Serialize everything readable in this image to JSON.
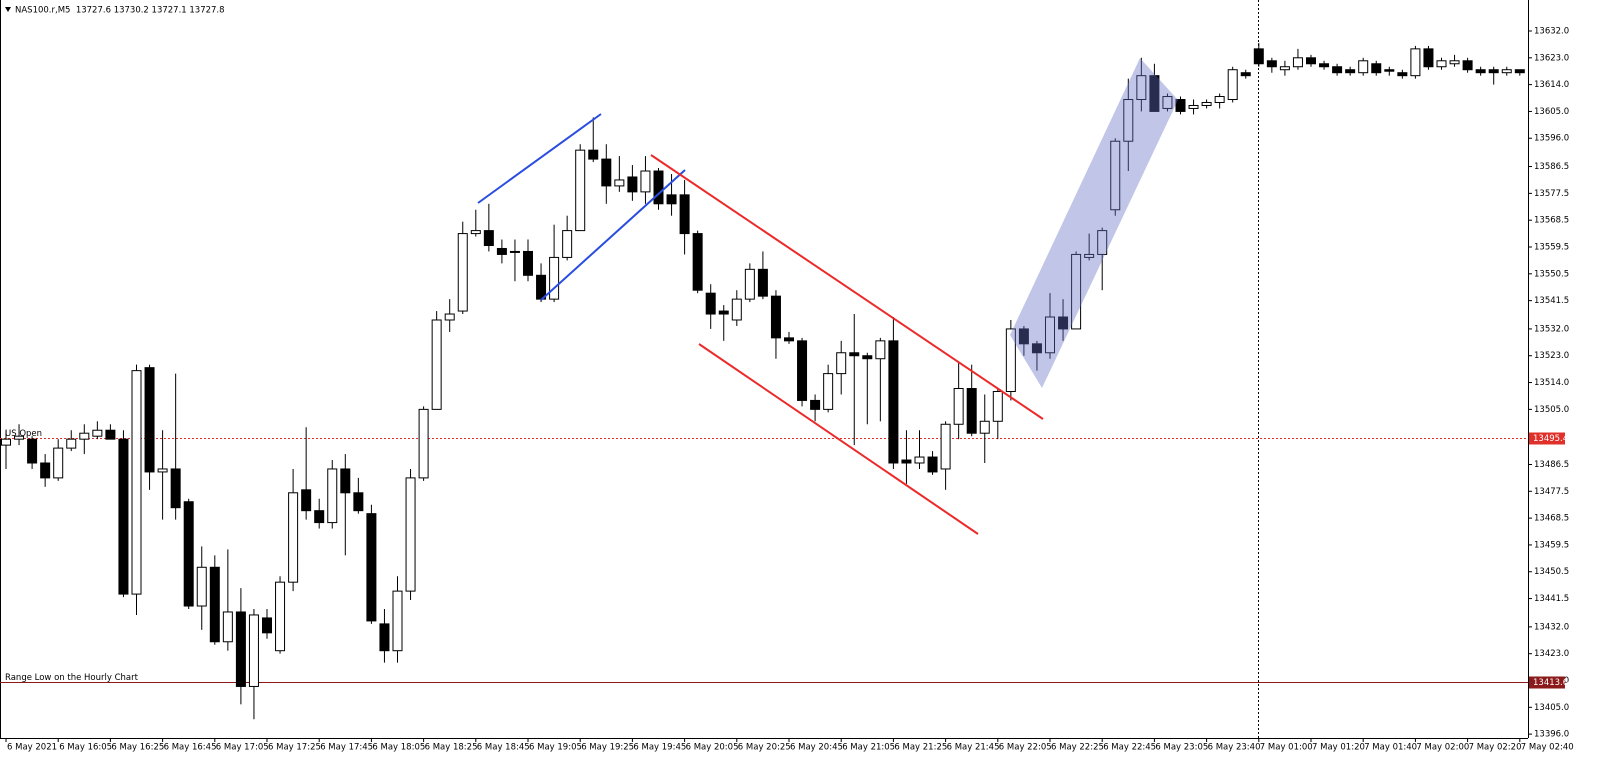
{
  "chart_data": {
    "type": "candlestick",
    "title": "NAS100.r,M5  13727.6 13730.2 13727.1 13727.8",
    "up_color": "#ffffff",
    "down_color": "#000000",
    "wick_color": "#000000",
    "grid": false,
    "ylim": [
      13394.7,
      13642.4
    ],
    "yticks": [
      {
        "value": 13632,
        "label": "13632.0"
      },
      {
        "value": 13623,
        "label": "13623.0"
      },
      {
        "value": 13614,
        "label": "13614.0"
      },
      {
        "value": 13605,
        "label": "13605.0"
      },
      {
        "value": 13596,
        "label": "13596.0"
      },
      13586.5,
      13577.5,
      13568.5,
      13559.5,
      13550.5,
      13541.5,
      {
        "value": 13532,
        "label": "13532.0"
      },
      {
        "value": 13523,
        "label": "13523.0"
      },
      {
        "value": 13514,
        "label": "13514.0"
      },
      {
        "value": 13505,
        "label": "13505.0"
      },
      13486.5,
      13477.5,
      13468.5,
      13459.5,
      13450.5,
      13441.5,
      {
        "value": 13432,
        "label": "13432.0"
      },
      {
        "value": 13423,
        "label": "13423.0"
      },
      {
        "value": 13414,
        "label": "13414.0"
      },
      {
        "value": 13405,
        "label": "13405.0"
      },
      {
        "value": 13396,
        "label": "13396.0"
      }
    ],
    "hlines": [
      {
        "label": "US Open",
        "value": 13495.4,
        "color": "#e0302a",
        "style": "dotted"
      },
      {
        "label": "Range Low on the Hourly Chart",
        "value": 13413.6,
        "color": "#8b1a1a",
        "style": "solid"
      }
    ],
    "categories": [
      "6 May 2021",
      null,
      null,
      null,
      "6 May 16:05",
      null,
      null,
      null,
      "6 May 16:25",
      null,
      null,
      null,
      "6 May 16:45",
      null,
      null,
      null,
      "6 May 17:05",
      null,
      null,
      null,
      "6 May 17:25",
      null,
      null,
      null,
      "6 May 17:45",
      null,
      null,
      null,
      "6 May 18:05",
      null,
      null,
      null,
      "6 May 18:25",
      null,
      null,
      null,
      "6 May 18:45",
      null,
      null,
      null,
      "6 May 19:05",
      null,
      null,
      null,
      "6 May 19:25",
      null,
      null,
      null,
      "6 May 19:45",
      null,
      null,
      null,
      "6 May 20:05",
      null,
      null,
      null,
      "6 May 20:25",
      null,
      null,
      null,
      "6 May 20:45",
      null,
      null,
      null,
      "6 May 21:05",
      null,
      null,
      null,
      "6 May 21:25",
      null,
      null,
      null,
      "6 May 21:45",
      null,
      null,
      null,
      "6 May 22:05",
      null,
      null,
      null,
      "6 May 22:25",
      null,
      null,
      null,
      "6 May 22:45",
      null,
      null,
      null,
      "6 May 23:05",
      null,
      null,
      null,
      "6 May 23:40",
      null,
      null,
      null,
      "7 May 01:00",
      null,
      null,
      null,
      "7 May 01:20",
      null,
      null,
      null,
      "7 May 01:40",
      null,
      null,
      null,
      "7 May 02:00",
      null,
      null,
      null,
      "7 May 02:20",
      null,
      null,
      null,
      "7 May 02:40"
    ],
    "open": [
      13493,
      13495,
      13495,
      13487,
      13482,
      13492,
      13495,
      13496,
      13498,
      13495,
      13443,
      13519,
      13484,
      13485,
      13474,
      13439,
      13452,
      13427,
      13437,
      13412,
      13435,
      13424,
      13447,
      13478,
      13471,
      13467,
      13485,
      13477,
      13470,
      13433,
      13424,
      13444,
      13482,
      13505,
      13535,
      13538,
      13564,
      13565,
      13559,
      13558,
      13558,
      13550,
      13542,
      13556,
      13565,
      13592,
      13589,
      13580,
      13583,
      13578,
      13585,
      13577,
      13577,
      13564,
      13544,
      13538,
      13535,
      13542,
      13552,
      13543,
      13529,
      13528,
      13508,
      13505,
      13517,
      13524,
      13523,
      13522,
      13528,
      13488,
      13487,
      13489,
      13485,
      13500,
      13512,
      13497,
      13501,
      13511,
      13532,
      13527,
      13524,
      13536,
      13532,
      13556,
      13557,
      13572,
      13595,
      13609,
      13617,
      13606,
      13609,
      13606,
      13607,
      13608,
      13609,
      13618,
      13626,
      13622,
      13619,
      13620,
      13623,
      13621,
      13620,
      13619,
      13618,
      13621,
      13619,
      13618,
      13617,
      13626,
      13620,
      13621,
      13622,
      13619,
      13619,
      13618,
      13619
    ],
    "high": [
      13498,
      13500,
      13496,
      13490,
      13495,
      13498,
      13500,
      13501,
      13500,
      13498,
      13520,
      13520,
      13498,
      13517,
      13475,
      13459,
      13456,
      13458,
      13445,
      13438,
      13438,
      13449,
      13485,
      13499,
      13475,
      13488,
      13490,
      13482,
      13473,
      13438,
      13449,
      13485,
      13506,
      13538,
      13542,
      13568,
      13572,
      13574,
      13562,
      13562,
      13562,
      13554,
      13567,
      13570,
      13594,
      13603,
      13594,
      13590,
      13587,
      13590,
      13586,
      13584,
      13582,
      13565,
      13547,
      13540,
      13545,
      13554,
      13558,
      13545,
      13531,
      13529,
      13510,
      13520,
      13528,
      13537,
      13524,
      13529,
      13536,
      13498,
      13498,
      13491,
      13501,
      13521,
      13520,
      13510,
      13512,
      13535,
      13533,
      13528,
      13544,
      13542,
      13558,
      13564,
      13566,
      13596,
      13616,
      13623,
      13621,
      13611,
      13610,
      13609,
      13609,
      13611,
      13620,
      13619,
      13628,
      13623,
      13622,
      13626,
      13624,
      13622,
      13621,
      13620,
      13623,
      13622,
      13620,
      13619,
      13627,
      13627,
      13623,
      13624,
      13623,
      13620,
      13620,
      13620,
      13619
    ],
    "low": [
      13485,
      13493,
      13485,
      13479,
      13481,
      13491,
      13490,
      13495,
      13495,
      13442,
      13436,
      13478,
      13468,
      13468,
      13438,
      13431,
      13426,
      13424,
      13406,
      13401,
      13428,
      13423,
      13444,
      13468,
      13465,
      13465,
      13456,
      13470,
      13433,
      13420,
      13420,
      13441,
      13481,
      13505,
      13531,
      13537,
      13563,
      13558,
      13554,
      13548,
      13548,
      13541,
      13541,
      13555,
      13565,
      13588,
      13574,
      13578,
      13575,
      13574,
      13572,
      13570,
      13557,
      13544,
      13532,
      13528,
      13533,
      13541,
      13542,
      13522,
      13527,
      13506,
      13501,
      13504,
      13510,
      13493,
      13500,
      13501,
      13485,
      13480,
      13485,
      13483,
      13478,
      13495,
      13496,
      13487,
      13495,
      13508,
      13523,
      13518,
      13522,
      13528,
      13532,
      13555,
      13545,
      13570,
      13585,
      13605,
      13605,
      13605,
      13604,
      13604,
      13606,
      13606,
      13608,
      13616,
      13620,
      13618,
      13617,
      13619,
      13620,
      13619,
      13617,
      13617,
      13617,
      13617,
      13617,
      13616,
      13616,
      13619,
      13619,
      13620,
      13618,
      13617,
      13614,
      13617,
      13617
    ],
    "close": [
      13495,
      13496,
      13487,
      13482,
      13492,
      13495,
      13497,
      13498,
      13495,
      13443,
      13518,
      13484,
      13485,
      13472,
      13439,
      13452,
      13427,
      13437,
      13412,
      13436,
      13430,
      13447,
      13477,
      13471,
      13467,
      13485,
      13477,
      13471,
      13434,
      13424,
      13444,
      13482,
      13505,
      13535,
      13537,
      13564,
      13565,
      13560,
      13557,
      13558,
      13550,
      13542,
      13556,
      13565,
      13592,
      13589,
      13580,
      13582,
      13578,
      13585,
      13574,
      13574,
      13564,
      13545,
      13537,
      13537,
      13542,
      13552,
      13543,
      13529,
      13528,
      13508,
      13505,
      13517,
      13524,
      13523,
      13522,
      13528,
      13487,
      13487,
      13489,
      13484,
      13500,
      13512,
      13497,
      13501,
      13511,
      13532,
      13527,
      13524,
      13536,
      13532,
      13557,
      13557,
      13565,
      13595,
      13609,
      13617,
      13605,
      13610,
      13605,
      13607,
      13608,
      13610,
      13619,
      13617,
      13621,
      13620,
      13620,
      13623,
      13621,
      13620,
      13618,
      13618,
      13622,
      13618,
      13618.5,
      13617,
      13626,
      13620,
      13622,
      13622,
      13619,
      13618,
      13618,
      13619,
      13618
    ]
  }
}
